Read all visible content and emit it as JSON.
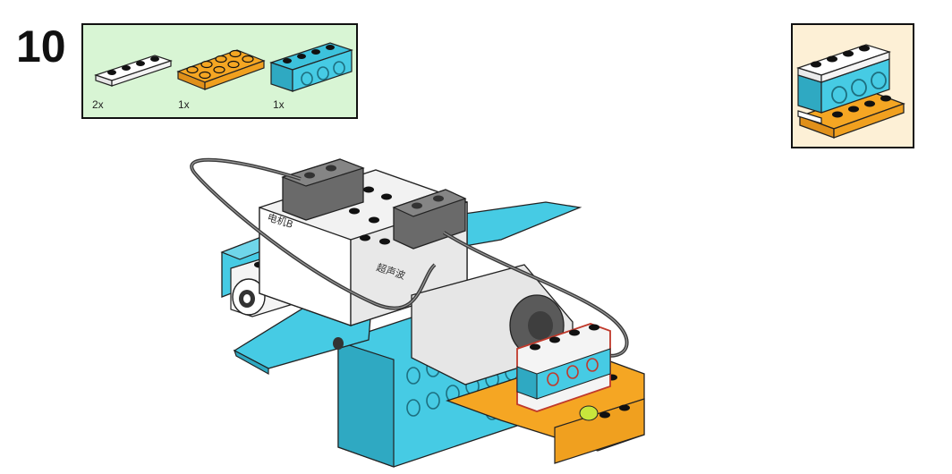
{
  "step": {
    "number": "10"
  },
  "parts": [
    {
      "name": "white-plate-1x4",
      "color": "#ffffff",
      "qty": "2x"
    },
    {
      "name": "orange-plate-2x4",
      "color": "#f5a623",
      "qty": "1x"
    },
    {
      "name": "azure-beam-1x4",
      "color": "#3dc2dc",
      "qty": "1x"
    }
  ],
  "colors": {
    "parts_box_bg": "#d8f5d4",
    "subassembly_bg": "#fdf0d6",
    "azure": "#3dc2dc",
    "orange": "#f5a623",
    "white": "#ffffff",
    "dark_gray": "#5a5a5a",
    "highlight": "#c0392b"
  },
  "model": {
    "hub_label_left": "电机B",
    "hub_label_right": "超声波"
  }
}
